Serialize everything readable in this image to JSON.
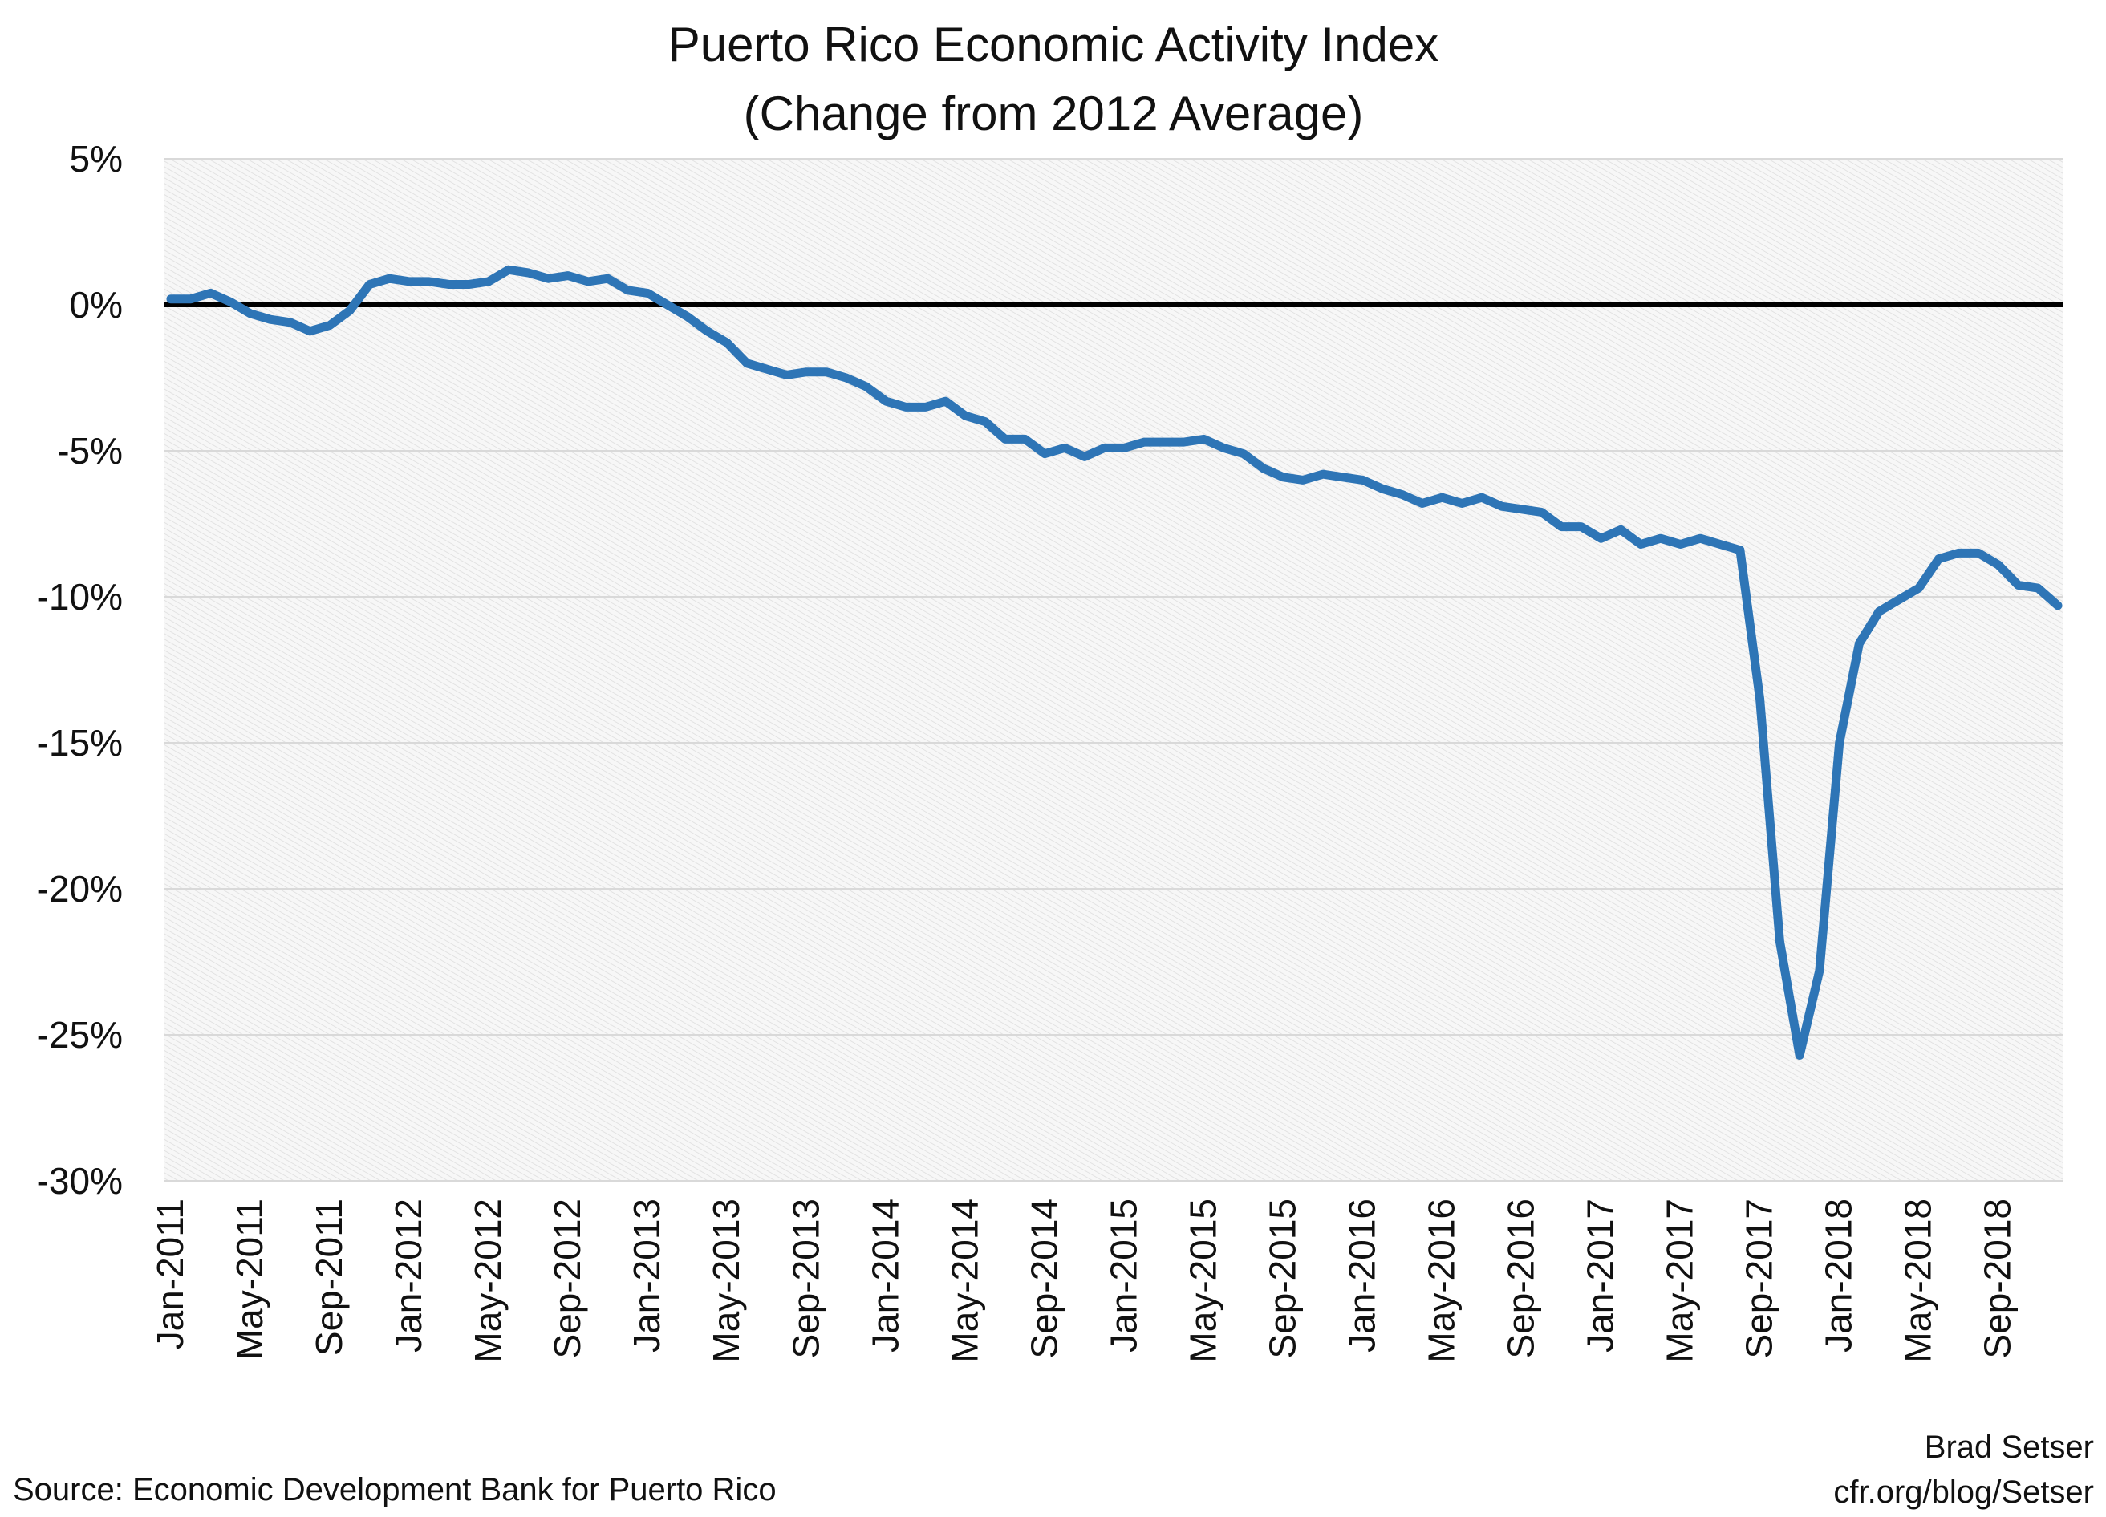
{
  "chart_data": {
    "type": "line",
    "title": "Puerto Rico Economic Activity Index",
    "subtitle": "(Change from 2012 Average)",
    "xlabel": "",
    "ylabel": "",
    "ylim": [
      -30,
      5
    ],
    "yticks": [
      5,
      0,
      -5,
      -10,
      -15,
      -20,
      -25,
      -30
    ],
    "ytick_labels": [
      "5%",
      "0%",
      "-5%",
      "-10%",
      "-15%",
      "-20%",
      "-25%",
      "-30%"
    ],
    "x_start": "Jan-2011",
    "x_end": "Dec-2018",
    "xtick_labels": [
      "Jan-2011",
      "May-2011",
      "Sep-2011",
      "Jan-2012",
      "May-2012",
      "Sep-2012",
      "Jan-2013",
      "May-2013",
      "Sep-2013",
      "Jan-2014",
      "May-2014",
      "Sep-2014",
      "Jan-2015",
      "May-2015",
      "Sep-2015",
      "Jan-2016",
      "May-2016",
      "Sep-2016",
      "Jan-2017",
      "May-2017",
      "Sep-2017",
      "Jan-2018",
      "May-2018",
      "Sep-2018"
    ],
    "grid": true,
    "zero_line": true,
    "series": [
      {
        "color": "#2e75b6",
        "values": [
          0.2,
          0.2,
          0.4,
          0.1,
          -0.3,
          -0.5,
          -0.6,
          -0.9,
          -0.7,
          -0.2,
          0.7,
          0.9,
          0.8,
          0.8,
          0.7,
          0.7,
          0.8,
          1.2,
          1.1,
          0.9,
          1.0,
          0.8,
          0.9,
          0.5,
          0.4,
          0.0,
          -0.4,
          -0.9,
          -1.3,
          -2.0,
          -2.2,
          -2.4,
          -2.3,
          -2.3,
          -2.5,
          -2.8,
          -3.3,
          -3.5,
          -3.5,
          -3.3,
          -3.8,
          -4.0,
          -4.6,
          -4.6,
          -5.1,
          -4.9,
          -5.2,
          -4.9,
          -4.9,
          -4.7,
          -4.7,
          -4.7,
          -4.6,
          -4.9,
          -5.1,
          -5.6,
          -5.9,
          -6.0,
          -5.8,
          -5.9,
          -6.0,
          -6.3,
          -6.5,
          -6.8,
          -6.6,
          -6.8,
          -6.6,
          -6.9,
          -7.0,
          -7.1,
          -7.6,
          -7.6,
          -8.0,
          -7.7,
          -8.2,
          -8.0,
          -8.2,
          -8.0,
          -8.2,
          -8.4,
          -13.5,
          -21.8,
          -25.7,
          -22.8,
          -15.0,
          -11.6,
          -10.5,
          -10.1,
          -9.7,
          -8.7,
          -8.5,
          -8.5,
          -8.9,
          -9.6,
          -9.7,
          -10.3
        ]
      }
    ],
    "source": "Source: Economic Development Bank for Puerto Rico",
    "credit_line1": "Brad Setser",
    "credit_line2": "cfr.org/blog/Setser"
  }
}
